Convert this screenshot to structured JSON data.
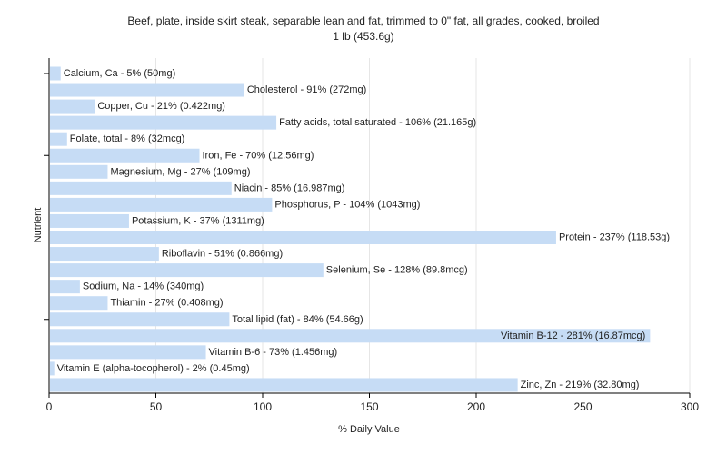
{
  "chart_data": {
    "type": "bar",
    "orientation": "horizontal",
    "title": "Beef, plate, inside skirt steak, separable lean and fat, trimmed to 0\" fat, all grades, cooked, broiled",
    "subtitle": "1 lb (453.6g)",
    "xlabel": "% Daily Value",
    "ylabel": "Nutrient",
    "xlim": [
      0,
      300
    ],
    "xticks": [
      0,
      50,
      100,
      150,
      200,
      250,
      300
    ],
    "grid": true,
    "bar_color": "#c6dcf5",
    "categories": [
      "Calcium, Ca",
      "Cholesterol",
      "Copper, Cu",
      "Fatty acids, total saturated",
      "Folate, total",
      "Iron, Fe",
      "Magnesium, Mg",
      "Niacin",
      "Phosphorus, P",
      "Potassium, K",
      "Protein",
      "Riboflavin",
      "Selenium, Se",
      "Sodium, Na",
      "Thiamin",
      "Total lipid (fat)",
      "Vitamin B-12",
      "Vitamin B-6",
      "Vitamin E (alpha-tocopherol)",
      "Zinc, Zn"
    ],
    "values": [
      5,
      91,
      21,
      106,
      8,
      70,
      27,
      85,
      104,
      37,
      237,
      51,
      128,
      14,
      27,
      84,
      281,
      73,
      2,
      219
    ],
    "labels": [
      "Calcium, Ca - 5% (50mg)",
      "Cholesterol - 91% (272mg)",
      "Copper, Cu - 21% (0.422mg)",
      "Fatty acids, total saturated - 106% (21.165g)",
      "Folate, total - 8% (32mcg)",
      "Iron, Fe - 70% (12.56mg)",
      "Magnesium, Mg - 27% (109mg)",
      "Niacin - 85% (16.987mg)",
      "Phosphorus, P - 104% (1043mg)",
      "Potassium, K - 37% (1311mg)",
      "Protein - 237% (118.53g)",
      "Riboflavin - 51% (0.866mg)",
      "Selenium, Se - 128% (89.8mcg)",
      "Sodium, Na - 14% (340mg)",
      "Thiamin - 27% (0.408mg)",
      "Total lipid (fat) - 84% (54.66g)",
      "Vitamin B-12 - 281% (16.87mcg)",
      "Vitamin B-6 - 73% (1.456mg)",
      "Vitamin E (alpha-tocopherol) - 2% (0.45mg)",
      "Zinc, Zn - 219% (32.80mg)"
    ]
  }
}
